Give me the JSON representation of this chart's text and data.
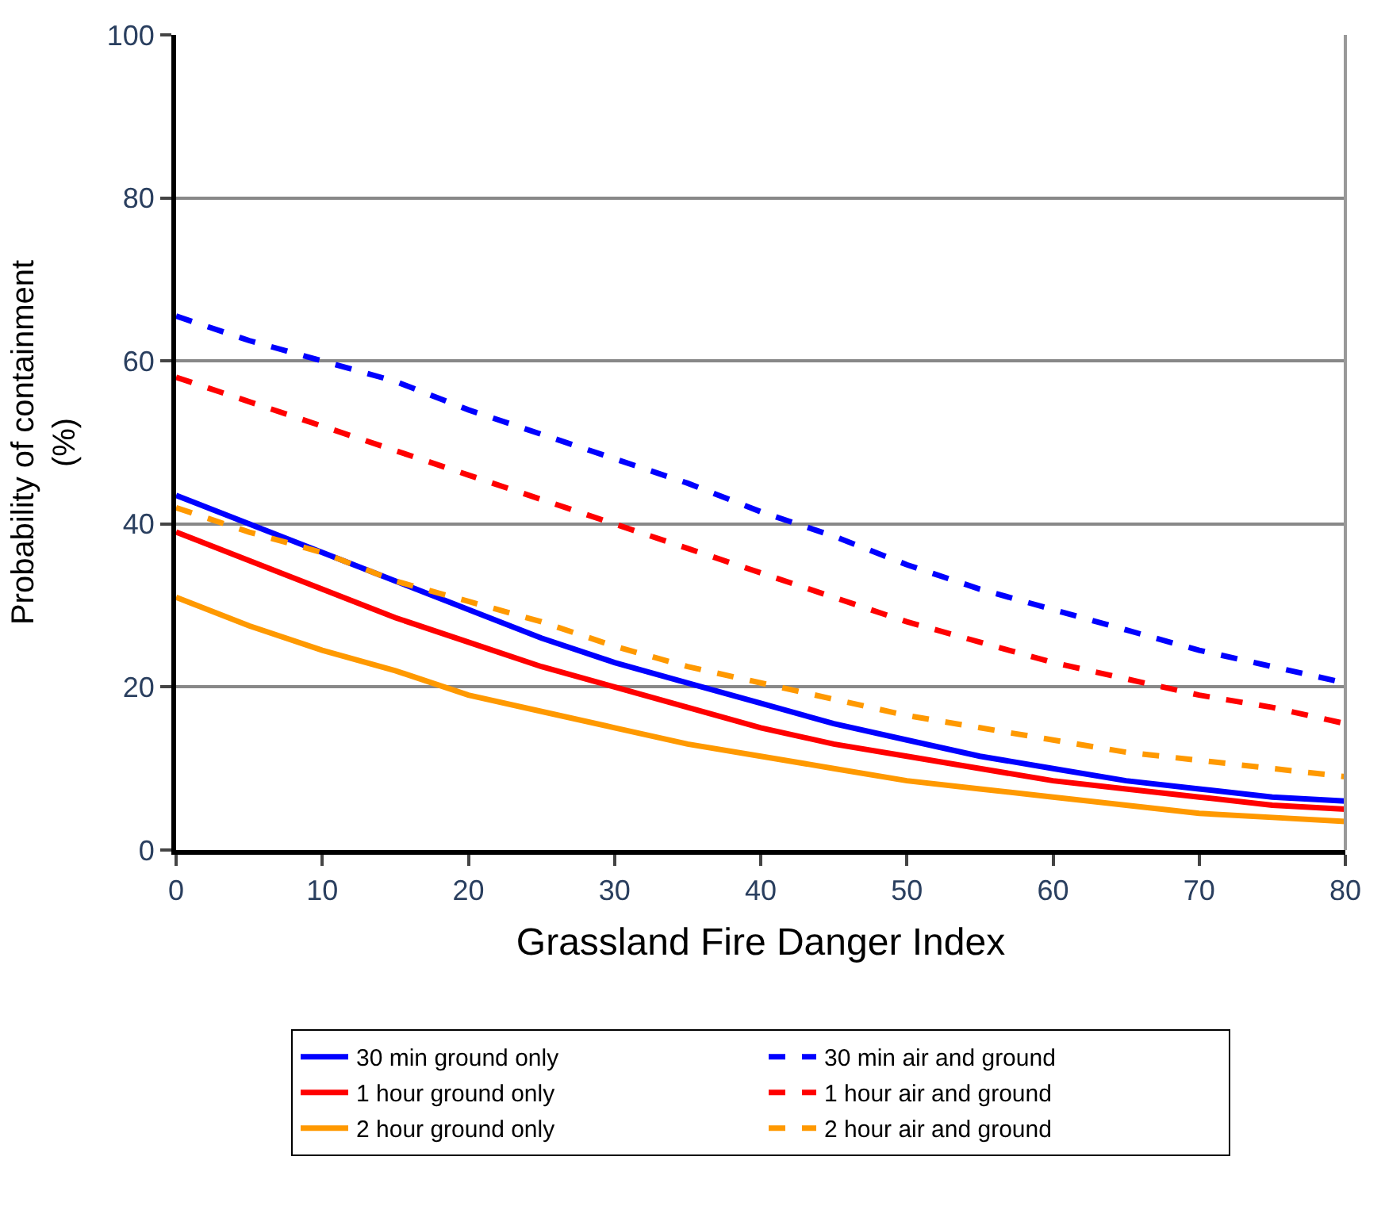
{
  "chart_data": {
    "type": "line",
    "xlabel": "Grassland Fire Danger Index",
    "ylabel": "Probability of containment\n(%)",
    "x": [
      0,
      5,
      10,
      15,
      20,
      25,
      30,
      35,
      40,
      45,
      50,
      55,
      60,
      65,
      70,
      75,
      80
    ],
    "xlim": [
      0,
      80
    ],
    "xticks": [
      0,
      10,
      20,
      30,
      40,
      50,
      60,
      70,
      80
    ],
    "ylim": [
      0,
      100
    ],
    "yticks": [
      0,
      20,
      40,
      60,
      80,
      100
    ],
    "grid": "y",
    "legend": "bottom",
    "marker": "none",
    "series": [
      {
        "name": "30 min ground only",
        "color": "#0000ff",
        "line_style": "solid",
        "values": [
          43.5,
          40,
          36.5,
          33,
          29.5,
          26,
          23,
          20.5,
          18,
          15.5,
          13.5,
          11.5,
          10,
          8.5,
          7.5,
          6.5,
          6
        ]
      },
      {
        "name": "30 min air and ground",
        "color": "#0000ff",
        "line_style": "dashed",
        "values": [
          65.5,
          62.5,
          60,
          57.5,
          54,
          51,
          48,
          45,
          41.5,
          38.5,
          35,
          32,
          29.5,
          27,
          24.5,
          22.5,
          20.5
        ]
      },
      {
        "name": "1 hour ground only",
        "color": "#ff0000",
        "line_style": "solid",
        "values": [
          39,
          35.5,
          32,
          28.5,
          25.5,
          22.5,
          20,
          17.5,
          15,
          13,
          11.5,
          10,
          8.5,
          7.5,
          6.5,
          5.5,
          5
        ]
      },
      {
        "name": "1 hour air and ground",
        "color": "#ff0000",
        "line_style": "dashed",
        "values": [
          58,
          55,
          52,
          49,
          46,
          43,
          40,
          37,
          34,
          31,
          28,
          25.5,
          23,
          21,
          19,
          17.5,
          15.5
        ]
      },
      {
        "name": "2 hour ground only",
        "color": "#ff9900",
        "line_style": "solid",
        "values": [
          31,
          27.5,
          24.5,
          22,
          19,
          17,
          15,
          13,
          11.5,
          10,
          8.5,
          7.5,
          6.5,
          5.5,
          4.5,
          4,
          3.5
        ]
      },
      {
        "name": "2 hour air and ground",
        "color": "#ff9900",
        "line_style": "dashed",
        "values": [
          42,
          39,
          36.5,
          33,
          30.5,
          28,
          25,
          22.5,
          20.5,
          18.5,
          16.5,
          15,
          13.5,
          12,
          11,
          10,
          9
        ]
      }
    ]
  }
}
